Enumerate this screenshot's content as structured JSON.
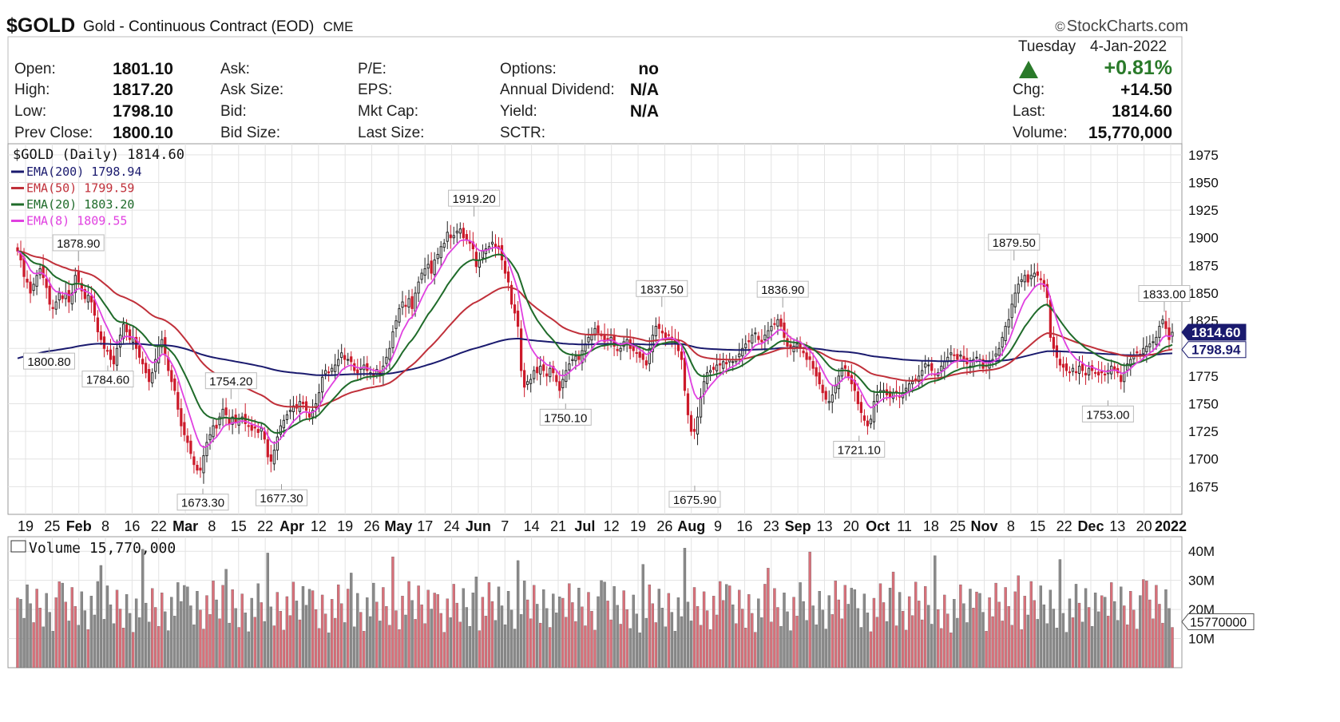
{
  "header": {
    "symbol": "$GOLD",
    "name": "Gold - Continuous Contract (EOD)",
    "exchange": "CME",
    "brand": "StockCharts.com",
    "date_day": "Tuesday",
    "date": "4-Jan-2022",
    "pct_change": "+0.81%",
    "up_color": "#2a7a2a"
  },
  "quote": {
    "col1": [
      {
        "label": "Open:",
        "value": "1801.10"
      },
      {
        "label": "High:",
        "value": "1817.20"
      },
      {
        "label": "Low:",
        "value": "1798.10"
      },
      {
        "label": "Prev Close:",
        "value": "1800.10"
      }
    ],
    "col2": [
      {
        "label": "Ask:",
        "value": ""
      },
      {
        "label": "Ask Size:",
        "value": ""
      },
      {
        "label": "Bid:",
        "value": ""
      },
      {
        "label": "Bid Size:",
        "value": ""
      }
    ],
    "col3": [
      {
        "label": "P/E:",
        "value": ""
      },
      {
        "label": "EPS:",
        "value": ""
      },
      {
        "label": "Mkt Cap:",
        "value": ""
      },
      {
        "label": "Last Size:",
        "value": ""
      }
    ],
    "col4": [
      {
        "label": "Options:",
        "value": "no"
      },
      {
        "label": "Annual Dividend:",
        "value": "N/A"
      },
      {
        "label": "Yield:",
        "value": "N/A"
      },
      {
        "label": "SCTR:",
        "value": ""
      }
    ],
    "right": [
      {
        "label": "Chg:",
        "value": "+14.50"
      },
      {
        "label": "Last:",
        "value": "1814.60"
      },
      {
        "label": "Volume:",
        "value": "15,770,000"
      }
    ]
  },
  "chart_data": {
    "type": "line",
    "title": "$GOLD (Daily) 1814.60",
    "legend_placement": "top-left",
    "legend": [
      {
        "name": "EMA(200) 1798.94",
        "color": "#1a1a6e"
      },
      {
        "name": "EMA(50) 1799.59",
        "color": "#c0303a"
      },
      {
        "name": "EMA(20) 1803.20",
        "color": "#1f6b2a"
      },
      {
        "name": "EMA(8) 1809.55",
        "color": "#e040e0"
      }
    ],
    "ylim": [
      1650,
      1985
    ],
    "yticks": [
      1675,
      1700,
      1725,
      1750,
      1775,
      1800,
      1825,
      1850,
      1875,
      1900,
      1925,
      1950,
      1975
    ],
    "x_tick_labels": [
      "19",
      "25",
      "Feb",
      "8",
      "16",
      "22",
      "Mar",
      "8",
      "15",
      "22",
      "Apr",
      "12",
      "19",
      "26",
      "May",
      "17",
      "24",
      "Jun",
      "7",
      "14",
      "21",
      "Jul",
      "12",
      "19",
      "26",
      "Aug",
      "9",
      "16",
      "23",
      "Sep",
      "13",
      "20",
      "Oct",
      "11",
      "18",
      "25",
      "Nov",
      "8",
      "15",
      "22",
      "Dec",
      "13",
      "20",
      "2022"
    ],
    "bold_tick_labels": [
      "Feb",
      "Mar",
      "Apr",
      "May",
      "Jun",
      "Jul",
      "Aug",
      "Sep",
      "Oct",
      "Nov",
      "Dec",
      "2022"
    ],
    "last_price_label": "1814.60",
    "ema200_label": "1798.94",
    "annotations": [
      {
        "text": "1878.90",
        "x": 0.06,
        "y": 1878.9,
        "pos": "above"
      },
      {
        "text": "1800.80",
        "x": 0.035,
        "y": 1800.8,
        "pos": "below"
      },
      {
        "text": "1784.60",
        "x": 0.085,
        "y": 1784.6,
        "pos": "below"
      },
      {
        "text": "1754.20",
        "x": 0.19,
        "y": 1754.2,
        "pos": "above"
      },
      {
        "text": "1673.30",
        "x": 0.166,
        "y": 1673.3,
        "pos": "below"
      },
      {
        "text": "1677.30",
        "x": 0.233,
        "y": 1677.3,
        "pos": "below"
      },
      {
        "text": "1919.20",
        "x": 0.397,
        "y": 1919.2,
        "pos": "above"
      },
      {
        "text": "1750.10",
        "x": 0.475,
        "y": 1750.1,
        "pos": "below"
      },
      {
        "text": "1837.50",
        "x": 0.557,
        "y": 1837.5,
        "pos": "above"
      },
      {
        "text": "1675.90",
        "x": 0.585,
        "y": 1675.9,
        "pos": "below"
      },
      {
        "text": "1836.90",
        "x": 0.66,
        "y": 1836.9,
        "pos": "above"
      },
      {
        "text": "1721.10",
        "x": 0.725,
        "y": 1721.1,
        "pos": "below"
      },
      {
        "text": "1879.50",
        "x": 0.857,
        "y": 1879.5,
        "pos": "above"
      },
      {
        "text": "1753.00",
        "x": 0.937,
        "y": 1753.0,
        "pos": "below"
      },
      {
        "text": "1833.00",
        "x": 0.985,
        "y": 1833.0,
        "pos": "above"
      }
    ],
    "closes": [
      1888,
      1880,
      1865,
      1860,
      1850,
      1858,
      1866,
      1872,
      1864,
      1855,
      1840,
      1836,
      1842,
      1850,
      1845,
      1850,
      1842,
      1850,
      1866,
      1860,
      1852,
      1845,
      1848,
      1842,
      1830,
      1815,
      1808,
      1800,
      1798,
      1790,
      1786,
      1800,
      1812,
      1822,
      1815,
      1808,
      1810,
      1800,
      1792,
      1786,
      1778,
      1770,
      1778,
      1790,
      1802,
      1808,
      1794,
      1780,
      1770,
      1762,
      1745,
      1730,
      1722,
      1715,
      1705,
      1695,
      1690,
      1690,
      1703,
      1715,
      1722,
      1730,
      1728,
      1738,
      1745,
      1740,
      1732,
      1738,
      1733,
      1736,
      1738,
      1732,
      1730,
      1726,
      1728,
      1724,
      1728,
      1718,
      1702,
      1698,
      1708,
      1720,
      1730,
      1735,
      1740,
      1744,
      1748,
      1746,
      1752,
      1750,
      1744,
      1738,
      1744,
      1750,
      1760,
      1774,
      1780,
      1778,
      1782,
      1785,
      1790,
      1796,
      1790,
      1790,
      1788,
      1780,
      1778,
      1782,
      1785,
      1780,
      1778,
      1775,
      1781,
      1776,
      1784,
      1792,
      1800,
      1815,
      1825,
      1836,
      1842,
      1838,
      1845,
      1836,
      1850,
      1860,
      1868,
      1872,
      1876,
      1868,
      1880,
      1885,
      1892,
      1895,
      1905,
      1900,
      1902,
      1906,
      1908,
      1900,
      1898,
      1895,
      1890,
      1874,
      1880,
      1888,
      1890,
      1892,
      1896,
      1892,
      1890,
      1880,
      1868,
      1860,
      1840,
      1832,
      1820,
      1780,
      1765,
      1770,
      1772,
      1780,
      1778,
      1784,
      1780,
      1775,
      1782,
      1778,
      1770,
      1762,
      1772,
      1780,
      1786,
      1790,
      1793,
      1790,
      1798,
      1804,
      1810,
      1812,
      1818,
      1814,
      1812,
      1806,
      1808,
      1810,
      1802,
      1798,
      1800,
      1806,
      1808,
      1800,
      1798,
      1796,
      1792,
      1790,
      1785,
      1800,
      1812,
      1820,
      1818,
      1814,
      1810,
      1812,
      1808,
      1804,
      1798,
      1790,
      1762,
      1740,
      1725,
      1725,
      1738,
      1756,
      1770,
      1778,
      1780,
      1781,
      1785,
      1785,
      1788,
      1786,
      1790,
      1788,
      1790,
      1795,
      1800,
      1804,
      1806,
      1812,
      1814,
      1808,
      1806,
      1812,
      1816,
      1820,
      1822,
      1826,
      1820,
      1810,
      1802,
      1800,
      1802,
      1804,
      1800,
      1796,
      1790,
      1790,
      1782,
      1775,
      1768,
      1760,
      1754,
      1752,
      1758,
      1766,
      1775,
      1782,
      1782,
      1775,
      1768,
      1762,
      1750,
      1742,
      1735,
      1730,
      1736,
      1752,
      1758,
      1762,
      1762,
      1758,
      1756,
      1760,
      1760,
      1756,
      1760,
      1764,
      1768,
      1770,
      1772,
      1775,
      1780,
      1786,
      1785,
      1780,
      1776,
      1778,
      1784,
      1788,
      1792,
      1796,
      1794,
      1790,
      1794,
      1790,
      1786,
      1784,
      1790,
      1792,
      1790,
      1782,
      1784,
      1788,
      1790,
      1795,
      1800,
      1810,
      1820,
      1826,
      1840,
      1850,
      1858,
      1862,
      1866,
      1860,
      1866,
      1868,
      1866,
      1862,
      1856,
      1846,
      1810,
      1800,
      1792,
      1785,
      1783,
      1780,
      1778,
      1782,
      1778,
      1784,
      1780,
      1776,
      1782,
      1780,
      1778,
      1776,
      1778,
      1776,
      1780,
      1784,
      1780,
      1778,
      1770,
      1778,
      1786,
      1790,
      1794,
      1796,
      1794,
      1800,
      1802,
      1804,
      1806,
      1810,
      1820,
      1826,
      1818,
      1808,
      1814.6
    ],
    "volume_title": "Volume 15,770,000",
    "volume_ylim": [
      0,
      45000000
    ],
    "volume_ticks": [
      10000000,
      20000000,
      30000000,
      40000000
    ],
    "volume_tick_labels": [
      "10M",
      "20M",
      "30M",
      "40M"
    ],
    "volume_last_label": "15770000",
    "volume_up_color": "#d9707a",
    "volume_down_color": "#8a8a8a"
  }
}
